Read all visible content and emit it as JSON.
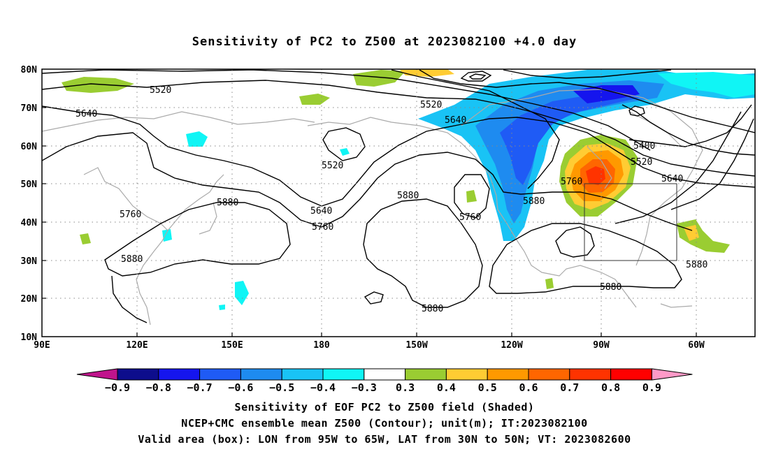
{
  "title": "Sensitivity of PC2 to Z500 at 2023082100 +4.0 day",
  "map": {
    "lon_ticks": [
      "90E",
      "120E",
      "150E",
      "180",
      "150W",
      "120W",
      "90W",
      "60W"
    ],
    "lat_ticks": [
      "80N",
      "70N",
      "60N",
      "50N",
      "40N",
      "30N",
      "20N",
      "10N"
    ],
    "contour_labels": [
      "5520",
      "5520",
      "5520",
      "5520",
      "5640",
      "5640",
      "5640",
      "5640",
      "5760",
      "5760",
      "5760",
      "5760",
      "5880",
      "5880",
      "5880",
      "5880",
      "5880",
      "5880",
      "5880",
      "5400"
    ],
    "valid_box": {
      "lon_west": -95,
      "lon_east": -65,
      "lat_south": 30,
      "lat_north": 50
    }
  },
  "colorbar": {
    "labels": [
      "-0.9",
      "-0.8",
      "-0.7",
      "-0.6",
      "-0.5",
      "-0.4",
      "-0.3",
      "0.3",
      "0.4",
      "0.5",
      "0.6",
      "0.7",
      "0.8",
      "0.9"
    ],
    "colors": [
      "#0d0d8c",
      "#1515ee",
      "#1f5bf5",
      "#1e8bf0",
      "#19c3f5",
      "#10f5f5",
      "#ffffff",
      "#9acd32",
      "#ffcc33",
      "#ff9900",
      "#ff6600",
      "#ff3300",
      "#ff0000"
    ],
    "low_end_color": "#c0148c",
    "high_end_color": "#ff9ac8"
  },
  "captions": {
    "line1": "Sensitivity of EOF PC2 to Z500 field (Shaded)",
    "line2": "NCEP+CMC ensemble mean Z500 (Contour); unit(m); IT:2023082100",
    "line3": "Valid area (box): LON from 95W to 65W, LAT from 30N to 50N; VT: 2023082600"
  }
}
